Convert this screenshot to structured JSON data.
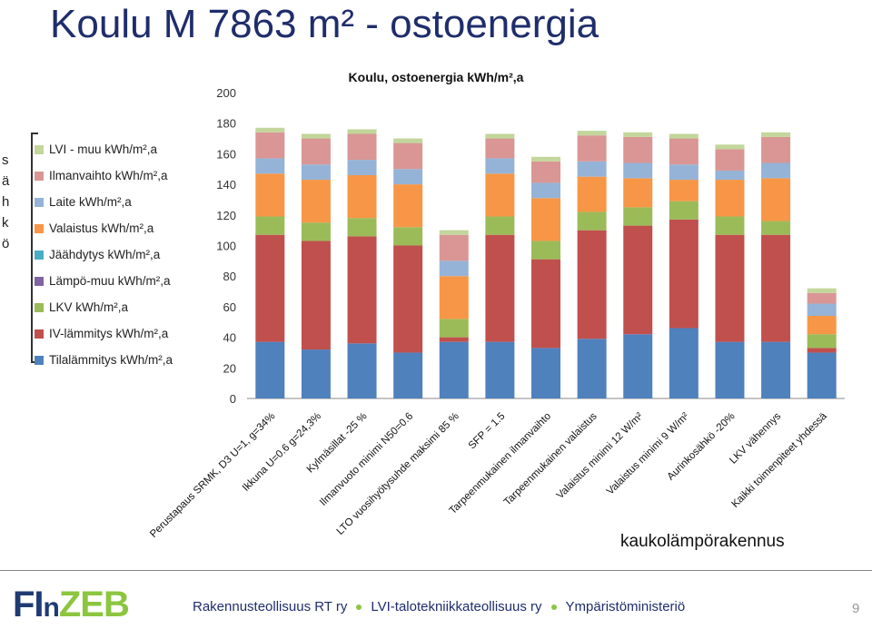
{
  "slide": {
    "title": "Koulu M 7863 m² - ostoenergia",
    "vertical_word": [
      "s",
      "ä",
      "h",
      "k",
      "ö"
    ],
    "footnote": "kaukolämpörakennus",
    "page_number": "9"
  },
  "footer": {
    "logo_fi": "FI",
    "logo_n": "n",
    "logo_zeb": "ZEB",
    "links": [
      "Rakennusteollisuus RT ry",
      "LVI-talotekniikkateollisuus ry",
      "Ympäristöministeriö"
    ]
  },
  "chart_data": {
    "type": "bar",
    "stacked": true,
    "title": "Koulu, ostoenergia kWh/m²,a",
    "ylim": [
      0,
      200
    ],
    "yticks": [
      0,
      20,
      40,
      60,
      80,
      100,
      120,
      140,
      160,
      180,
      200
    ],
    "grid": false,
    "legend_position": "left",
    "categories": [
      "Perustapaus SRMK, D3 U=1, g=34%",
      "Ikkuna U=0.6 g=24,3%",
      "Kylmäsillat -25 %",
      "Ilmanvuoto minimi N50=0.6",
      "LTO vuosihyötysuhde maksimi 85 %",
      "SFP = 1.5",
      "Tarpeenmukainen ilmanvaihto",
      "Tarpeenmukainen valaistus",
      "Valaistus minimi 12 W/m²",
      "Valaistus minimi 9 W/m²",
      "Aurinkosähkö -20%",
      "LKV vähennys",
      "Kaikki toimenpiteet yhdessä"
    ],
    "series": [
      {
        "name": "Tilalämmitys kWh/m²,a",
        "color": "#4f81bd",
        "values": [
          37,
          32,
          36,
          30,
          37,
          37,
          33,
          39,
          42,
          46,
          37,
          37,
          30
        ]
      },
      {
        "name": "IV-lämmitys kWh/m²,a",
        "color": "#c0504d",
        "values": [
          70,
          71,
          70,
          70,
          3,
          70,
          58,
          71,
          71,
          71,
          70,
          70,
          3
        ]
      },
      {
        "name": "LKV kWh/m²,a",
        "color": "#9bbb59",
        "values": [
          12,
          12,
          12,
          12,
          12,
          12,
          12,
          12,
          12,
          12,
          12,
          9,
          9
        ]
      },
      {
        "name": "Lämpö-muu kWh/m²,a",
        "color": "#8064a2",
        "values": [
          0,
          0,
          0,
          0,
          0,
          0,
          0,
          0,
          0,
          0,
          0,
          0,
          0
        ]
      },
      {
        "name": "Jäähdytys kWh/m²,a",
        "color": "#4bacc6",
        "values": [
          0,
          0,
          0,
          0,
          0,
          0,
          0,
          0,
          0,
          0,
          0,
          0,
          0
        ]
      },
      {
        "name": "Valaistus kWh/m²,a",
        "color": "#f79646",
        "values": [
          28,
          28,
          28,
          28,
          28,
          28,
          28,
          23,
          19,
          14,
          24,
          28,
          12
        ]
      },
      {
        "name": "Laite kWh/m²,a",
        "color": "#95b3d7",
        "values": [
          10,
          10,
          10,
          10,
          10,
          10,
          10,
          10,
          10,
          10,
          6,
          10,
          8
        ]
      },
      {
        "name": "Ilmanvaihto kWh/m²,a",
        "color": "#d99694",
        "values": [
          17,
          17,
          17,
          17,
          17,
          13,
          14,
          17,
          17,
          17,
          14,
          17,
          7
        ]
      },
      {
        "name": "LVI - muu kWh/m²,a",
        "color": "#c3d69b",
        "values": [
          3,
          3,
          3,
          3,
          3,
          3,
          3,
          3,
          3,
          3,
          3,
          3,
          3
        ]
      }
    ]
  }
}
